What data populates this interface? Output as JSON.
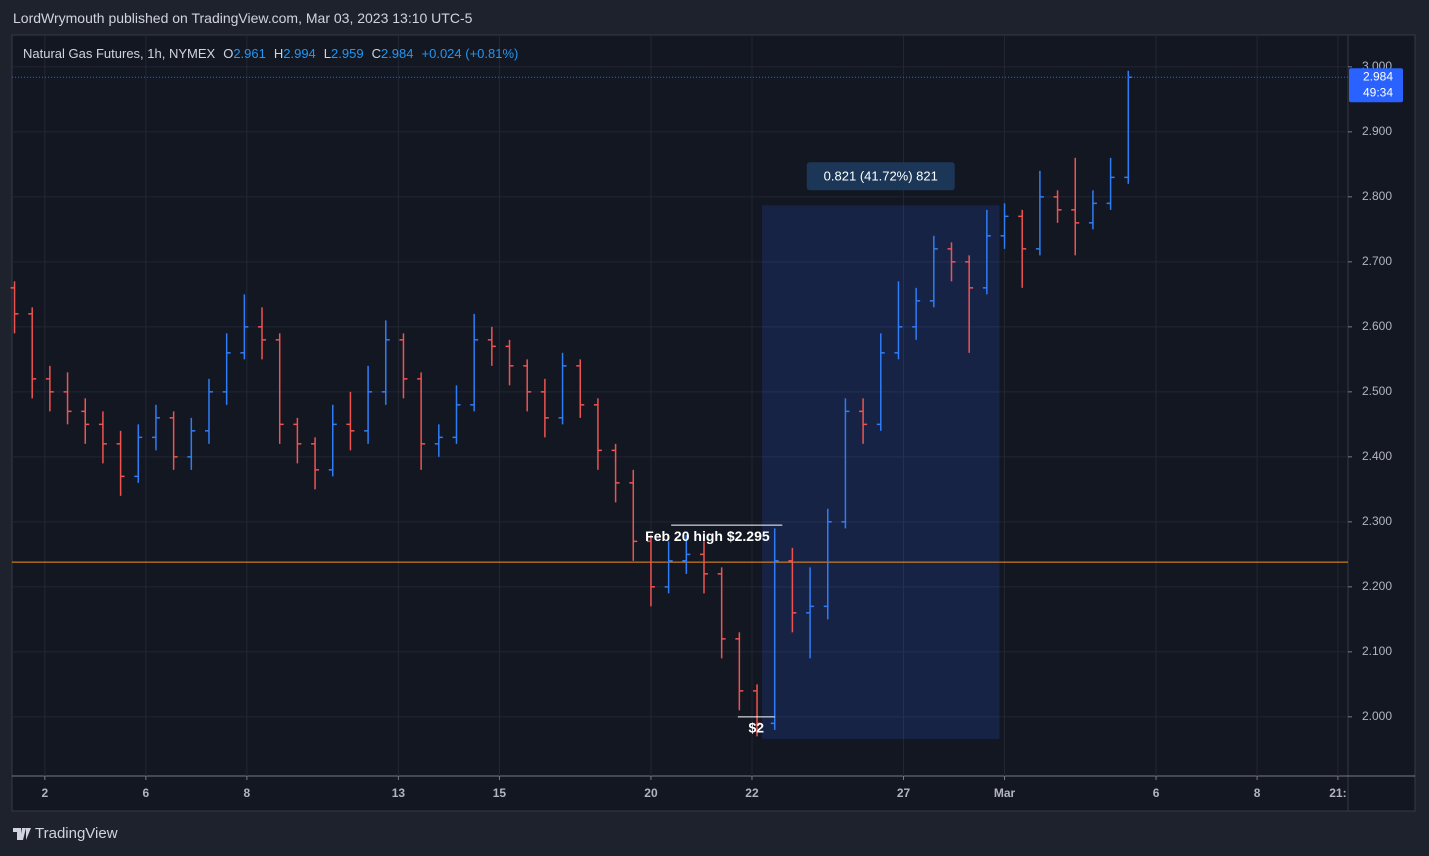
{
  "header": {
    "text": "LordWrymouth published on TradingView.com, Mar 03, 2023 13:10 UTC-5"
  },
  "chart_data": {
    "type": "ohlc",
    "symbol": "Natural Gas Futures, 1h, NYMEX",
    "legend": {
      "open_label": "O",
      "open": 2.961,
      "high_label": "H",
      "high": 2.994,
      "low_label": "L",
      "low": 2.959,
      "close_label": "C",
      "close": 2.984,
      "change": "+0.024 (+0.81%)"
    },
    "x": [
      0.4,
      0.75,
      1.1,
      1.45,
      1.8,
      2.15,
      2.5,
      2.85,
      3.2,
      3.55,
      3.9,
      4.25,
      4.6,
      4.95,
      5.3,
      5.65,
      6,
      6.35,
      6.7,
      7.05,
      7.4,
      7.75,
      8.1,
      8.45,
      8.8,
      9.15,
      9.5,
      9.85,
      10.2,
      10.55,
      10.9,
      11.25,
      11.6,
      11.95,
      12.3,
      12.65,
      13,
      13.35,
      13.7,
      14.05,
      14.4,
      14.75,
      15.1,
      15.45,
      15.8,
      16.15,
      16.5,
      16.85,
      17.2,
      17.55,
      17.9,
      18.25,
      18.6,
      18.95,
      19.3,
      19.65,
      20,
      20.35,
      20.7,
      21.05,
      21.4,
      21.75,
      22.1,
      22.45
    ],
    "open": [
      2.66,
      2.62,
      2.52,
      2.5,
      2.47,
      2.45,
      2.42,
      2.37,
      2.43,
      2.46,
      2.4,
      2.44,
      2.5,
      2.56,
      2.6,
      2.58,
      2.45,
      2.42,
      2.38,
      2.45,
      2.44,
      2.5,
      2.58,
      2.52,
      2.42,
      2.43,
      2.48,
      2.58,
      2.57,
      2.54,
      2.5,
      2.46,
      2.54,
      2.48,
      2.41,
      2.36,
      2.27,
      2.2,
      2.24,
      2.25,
      2.22,
      2.12,
      2.04,
      1.99,
      2.24,
      2.16,
      2.17,
      2.3,
      2.47,
      2.45,
      2.56,
      2.6,
      2.64,
      2.72,
      2.7,
      2.66,
      2.74,
      2.77,
      2.72,
      2.8,
      2.78,
      2.76,
      2.79,
      2.83
    ],
    "high": [
      2.67,
      2.63,
      2.54,
      2.53,
      2.49,
      2.47,
      2.44,
      2.45,
      2.48,
      2.47,
      2.46,
      2.52,
      2.59,
      2.65,
      2.63,
      2.59,
      2.46,
      2.43,
      2.48,
      2.5,
      2.54,
      2.61,
      2.59,
      2.53,
      2.45,
      2.51,
      2.62,
      2.6,
      2.58,
      2.55,
      2.52,
      2.56,
      2.55,
      2.49,
      2.42,
      2.38,
      2.28,
      2.27,
      2.28,
      2.27,
      2.23,
      2.13,
      2.05,
      2.29,
      2.26,
      2.23,
      2.32,
      2.49,
      2.49,
      2.59,
      2.67,
      2.66,
      2.74,
      2.73,
      2.71,
      2.78,
      2.79,
      2.78,
      2.84,
      2.81,
      2.86,
      2.81,
      2.86,
      2.994
    ],
    "low": [
      2.59,
      2.49,
      2.47,
      2.45,
      2.42,
      2.39,
      2.34,
      2.36,
      2.41,
      2.38,
      2.38,
      2.42,
      2.48,
      2.55,
      2.55,
      2.42,
      2.39,
      2.35,
      2.37,
      2.41,
      2.42,
      2.48,
      2.49,
      2.38,
      2.4,
      2.42,
      2.47,
      2.54,
      2.51,
      2.47,
      2.43,
      2.45,
      2.46,
      2.38,
      2.33,
      2.24,
      2.17,
      2.19,
      2.22,
      2.19,
      2.09,
      2.01,
      1.97,
      1.98,
      2.13,
      2.09,
      2.15,
      2.29,
      2.42,
      2.44,
      2.55,
      2.58,
      2.63,
      2.67,
      2.56,
      2.65,
      2.72,
      2.66,
      2.71,
      2.76,
      2.71,
      2.75,
      2.78,
      2.82
    ],
    "close": [
      2.62,
      2.52,
      2.5,
      2.47,
      2.45,
      2.42,
      2.37,
      2.43,
      2.46,
      2.4,
      2.44,
      2.5,
      2.56,
      2.6,
      2.58,
      2.45,
      2.42,
      2.38,
      2.45,
      2.44,
      2.5,
      2.58,
      2.52,
      2.42,
      2.43,
      2.48,
      2.58,
      2.57,
      2.54,
      2.5,
      2.46,
      2.54,
      2.48,
      2.41,
      2.36,
      2.27,
      2.2,
      2.24,
      2.25,
      2.22,
      2.12,
      2.04,
      1.99,
      2.24,
      2.16,
      2.17,
      2.3,
      2.47,
      2.45,
      2.56,
      2.6,
      2.64,
      2.72,
      2.7,
      2.66,
      2.74,
      2.77,
      2.72,
      2.8,
      2.78,
      2.76,
      2.79,
      2.83,
      2.984
    ],
    "up_color": "#2f7df6",
    "down_color": "#ef5350",
    "xlim": [
      0.35,
      26.8
    ],
    "xticks": [
      {
        "value": 1,
        "label": "2"
      },
      {
        "value": 3,
        "label": "6"
      },
      {
        "value": 5,
        "label": "8"
      },
      {
        "value": 8,
        "label": "13"
      },
      {
        "value": 10,
        "label": "15"
      },
      {
        "value": 13,
        "label": "20"
      },
      {
        "value": 15,
        "label": "22"
      },
      {
        "value": 18,
        "label": "27"
      },
      {
        "value": 20,
        "label": "Mar"
      },
      {
        "value": 23,
        "label": "6"
      },
      {
        "value": 25,
        "label": "8"
      },
      {
        "value": 26.6,
        "label": "21:"
      }
    ],
    "ylim": [
      1.909,
      3.049
    ],
    "yticks": [
      {
        "value": 2,
        "label": "2.000"
      },
      {
        "value": 2.1,
        "label": "2.100"
      },
      {
        "value": 2.2,
        "label": "2.200"
      },
      {
        "value": 2.3,
        "label": "2.300"
      },
      {
        "value": 2.4,
        "label": "2.400"
      },
      {
        "value": 2.5,
        "label": "2.500"
      },
      {
        "value": 2.6,
        "label": "2.600"
      },
      {
        "value": 2.7,
        "label": "2.700"
      },
      {
        "value": 2.8,
        "label": "2.800"
      },
      {
        "value": 2.9,
        "label": "2.900"
      },
      {
        "value": 3,
        "label": "3.000"
      }
    ],
    "grid": true,
    "level": {
      "value": 2.238,
      "color": "#f7931a"
    },
    "annotations": [
      {
        "text": "Feb 20 high $2.295",
        "x": [
          13.4,
          15.6
        ],
        "y": 2.295
      },
      {
        "text": "$2",
        "x": [
          14.72,
          15.45
        ],
        "y": 2
      }
    ],
    "measure": {
      "x": [
        15.2,
        19.9
      ],
      "y": [
        1.966,
        2.787
      ],
      "label": "0.821 (41.72%) 821"
    },
    "last_price": 2.984,
    "countdown": "49:34"
  },
  "footer": {
    "brand": "TradingView"
  }
}
